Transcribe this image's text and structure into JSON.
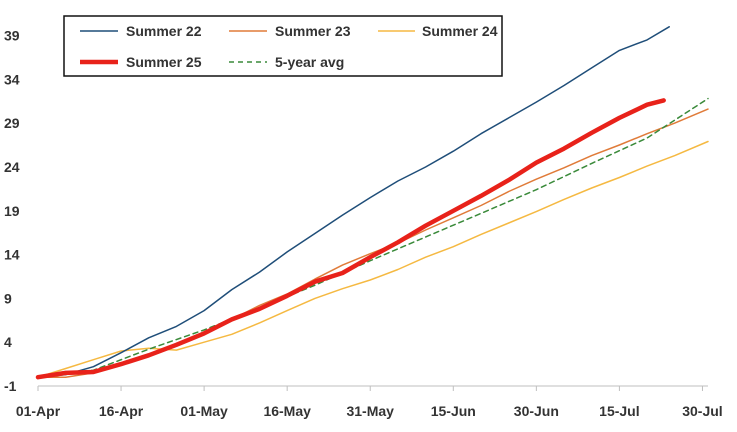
{
  "chart_data": {
    "type": "line",
    "title": "",
    "xlabel": "",
    "ylabel": "",
    "x_unit": "day-of-season",
    "x_ticks": [
      {
        "label": "01-Apr",
        "day": 0
      },
      {
        "label": "16-Apr",
        "day": 15
      },
      {
        "label": "01-May",
        "day": 30
      },
      {
        "label": "16-May",
        "day": 45
      },
      {
        "label": "31-May",
        "day": 60
      },
      {
        "label": "15-Jun",
        "day": 75
      },
      {
        "label": "30-Jun",
        "day": 90
      },
      {
        "label": "15-Jul",
        "day": 105
      },
      {
        "label": "30-Jul",
        "day": 120
      }
    ],
    "ylim": [
      -1,
      41
    ],
    "xlim": [
      0,
      121
    ],
    "y_ticks": [
      "39",
      "34",
      "29",
      "24",
      "19",
      "14",
      "9",
      "4",
      "-1"
    ],
    "y_tick_values": [
      39,
      34,
      29,
      24,
      19,
      14,
      9,
      4,
      -1
    ],
    "grid": false,
    "legend_position": "top-left",
    "series": [
      {
        "name": "Summer 22",
        "color": "#1f4e79",
        "style": "solid",
        "x": [
          0,
          5,
          10,
          15,
          20,
          25,
          30,
          35,
          40,
          45,
          50,
          55,
          60,
          65,
          70,
          75,
          80,
          85,
          90,
          95,
          100,
          105,
          110,
          114
        ],
        "y": [
          0,
          0.3,
          1.2,
          2.8,
          4.5,
          5.8,
          7.6,
          10.0,
          12.0,
          14.3,
          16.4,
          18.5,
          20.5,
          22.4,
          24.0,
          25.8,
          27.8,
          29.6,
          31.4,
          33.3,
          35.3,
          37.3,
          38.5,
          40.0
        ]
      },
      {
        "name": "Summer 23",
        "color": "#e07b39",
        "style": "solid",
        "x": [
          0,
          5,
          10,
          15,
          20,
          25,
          30,
          35,
          40,
          45,
          50,
          55,
          60,
          65,
          70,
          75,
          80,
          85,
          90,
          95,
          100,
          105,
          110,
          115,
          121
        ],
        "y": [
          0,
          0,
          0.5,
          1.6,
          2.6,
          3.8,
          5.0,
          6.6,
          8.2,
          9.5,
          11.2,
          12.8,
          14.1,
          15.3,
          16.8,
          18.2,
          19.6,
          21.2,
          22.6,
          23.9,
          25.3,
          26.5,
          27.8,
          29.0,
          30.6
        ]
      },
      {
        "name": "Summer 24",
        "color": "#f5b942",
        "style": "solid",
        "x": [
          0,
          5,
          10,
          15,
          20,
          25,
          30,
          35,
          40,
          45,
          50,
          55,
          60,
          65,
          70,
          75,
          80,
          85,
          90,
          95,
          100,
          105,
          110,
          115,
          121
        ],
        "y": [
          0,
          1.0,
          2.0,
          3.0,
          3.3,
          3.1,
          4.0,
          4.9,
          6.2,
          7.6,
          9.0,
          10.1,
          11.1,
          12.3,
          13.7,
          14.9,
          16.3,
          17.6,
          18.9,
          20.3,
          21.6,
          22.8,
          24.1,
          25.3,
          26.9
        ]
      },
      {
        "name": "Summer 25",
        "color": "#e8221a",
        "style": "solid-thick",
        "x": [
          0,
          5,
          10,
          15,
          20,
          25,
          30,
          35,
          40,
          45,
          50,
          55,
          60,
          65,
          70,
          75,
          80,
          85,
          90,
          95,
          100,
          105,
          110,
          113
        ],
        "y": [
          0,
          0.5,
          0.6,
          1.5,
          2.5,
          3.7,
          5.0,
          6.6,
          7.8,
          9.3,
          10.9,
          11.9,
          13.7,
          15.4,
          17.3,
          19.0,
          20.7,
          22.5,
          24.5,
          26.1,
          27.9,
          29.6,
          31.1,
          31.6
        ]
      },
      {
        "name": "5-year avg",
        "color": "#3a8a3a",
        "style": "dashed",
        "x": [
          0,
          10,
          20,
          30,
          40,
          50,
          60,
          70,
          80,
          90,
          100,
          110,
          121
        ],
        "y": [
          0,
          0.8,
          3.2,
          5.4,
          7.9,
          10.5,
          13.3,
          16.0,
          18.7,
          21.4,
          24.4,
          27.3,
          31.8
        ]
      }
    ]
  }
}
